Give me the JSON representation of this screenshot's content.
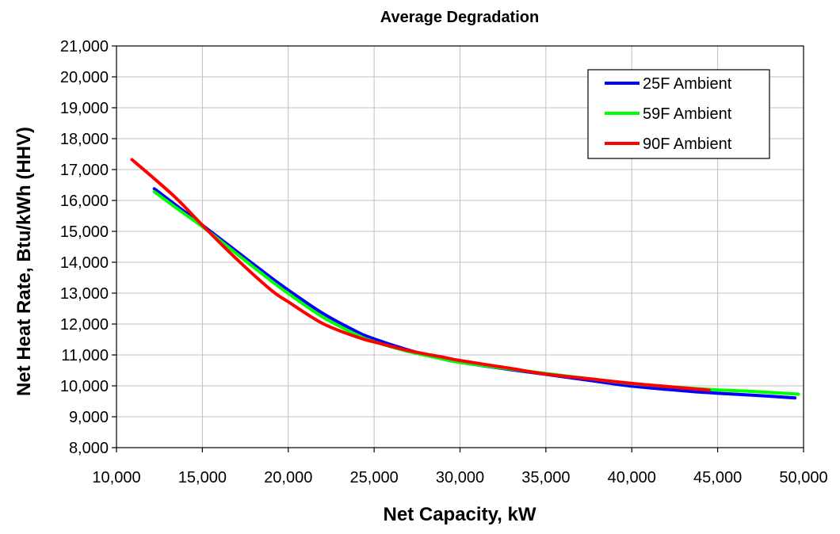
{
  "chart_data": {
    "type": "line",
    "title": "Average Degradation",
    "xlabel": "Net Capacity, kW",
    "ylabel": "Net Heat Rate, Btu/kWh (HHV)",
    "xlim": [
      10000,
      50000
    ],
    "ylim": [
      8000,
      21000
    ],
    "x_ticks": [
      10000,
      15000,
      20000,
      25000,
      30000,
      35000,
      40000,
      45000,
      50000
    ],
    "x_tick_labels": [
      "10,000",
      "15,000",
      "20,000",
      "25,000",
      "30,000",
      "35,000",
      "40,000",
      "45,000",
      "50,000"
    ],
    "y_ticks": [
      8000,
      9000,
      10000,
      11000,
      12000,
      13000,
      14000,
      15000,
      16000,
      17000,
      18000,
      19000,
      20000,
      21000
    ],
    "y_tick_labels": [
      "8,000",
      "9,000",
      "10,000",
      "11,000",
      "12,000",
      "13,000",
      "14,000",
      "15,000",
      "16,000",
      "17,000",
      "18,000",
      "19,000",
      "20,000",
      "21,000"
    ],
    "grid": true,
    "legend_position": "top-right",
    "series": [
      {
        "name": "25F Ambient",
        "color": "#0000ff",
        "x": [
          12200,
          13500,
          15000,
          17000,
          19000,
          20000,
          22000,
          24000,
          25000,
          27000,
          29000,
          30000,
          33000,
          35000,
          38000,
          40000,
          43000,
          45000,
          47000,
          49500
        ],
        "y": [
          16380,
          15830,
          15200,
          14350,
          13500,
          13100,
          12350,
          11750,
          11520,
          11160,
          10870,
          10760,
          10520,
          10370,
          10140,
          9990,
          9840,
          9760,
          9700,
          9610
        ]
      },
      {
        "name": "59F Ambient",
        "color": "#00ff00",
        "x": [
          12200,
          13500,
          15000,
          17000,
          19000,
          20000,
          22000,
          24000,
          25000,
          27000,
          29000,
          30000,
          33000,
          35000,
          38000,
          40000,
          43000,
          45000,
          47000,
          49700
        ],
        "y": [
          16280,
          15750,
          15150,
          14270,
          13400,
          12990,
          12230,
          11650,
          11430,
          11110,
          10870,
          10760,
          10540,
          10400,
          10200,
          10070,
          9940,
          9870,
          9820,
          9730
        ]
      },
      {
        "name": "90F Ambient",
        "color": "#ff0000",
        "x": [
          10900,
          12000,
          13500,
          15000,
          17000,
          19000,
          20000,
          22000,
          24000,
          25000,
          27000,
          29000,
          30000,
          33000,
          35000,
          38000,
          40000,
          42000,
          44500
        ],
        "y": [
          17320,
          16800,
          16060,
          15200,
          14100,
          13100,
          12720,
          12020,
          11580,
          11420,
          11140,
          10930,
          10820,
          10560,
          10380,
          10200,
          10080,
          9980,
          9860
        ]
      }
    ]
  }
}
